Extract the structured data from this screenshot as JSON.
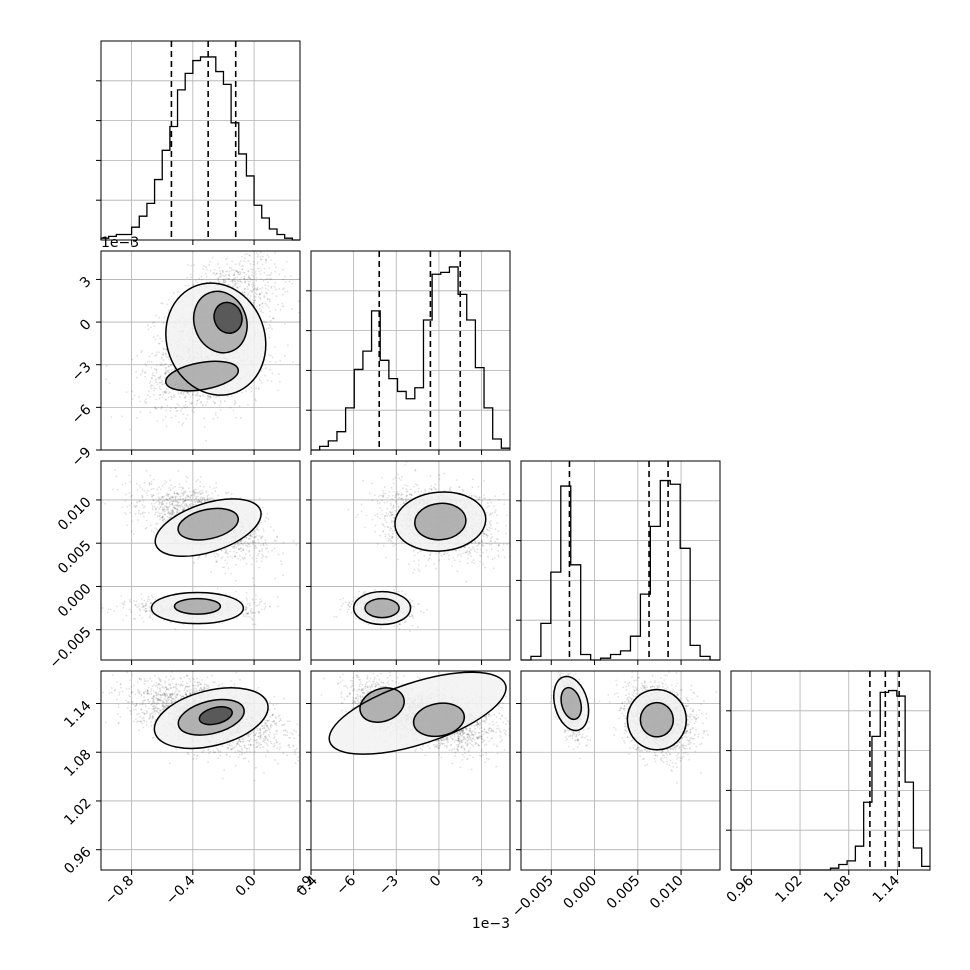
{
  "chart_data": {
    "type": "corner",
    "grid": true,
    "parameters": [
      {
        "range": [
          -1.0,
          0.3
        ],
        "ticks": [
          -0.8,
          -0.4,
          0.0,
          0.4
        ],
        "tick_labels": [
          "−0.8",
          "−0.4",
          "0.0",
          "0.4"
        ],
        "offset_label": "",
        "quantiles": [
          -0.54,
          -0.3,
          -0.12
        ]
      },
      {
        "range": [
          -9.0,
          5.0
        ],
        "ticks": [
          -9,
          -6,
          -3,
          0,
          3
        ],
        "tick_labels": [
          "−9",
          "−6",
          "−3",
          "0",
          "3"
        ],
        "offset_label": "1e−3",
        "quantiles": [
          -4.2,
          -0.6,
          1.5
        ]
      },
      {
        "range": [
          -0.0085,
          0.0145
        ],
        "ticks": [
          -0.005,
          0.0,
          0.005,
          0.01
        ],
        "tick_labels": [
          "−0.005",
          "0.000",
          "0.005",
          "0.010"
        ],
        "offset_label": "",
        "quantiles": [
          -0.0029,
          0.0063,
          0.0085
        ]
      },
      {
        "range": [
          0.935,
          1.18
        ],
        "ticks": [
          0.96,
          1.02,
          1.08,
          1.14
        ],
        "tick_labels": [
          "0.96",
          "1.02",
          "1.08",
          "1.14"
        ],
        "offset_label": "",
        "quantiles": [
          1.106,
          1.125,
          1.142
        ]
      }
    ],
    "histograms": [
      [
        0.01,
        0.02,
        0.03,
        0.03,
        0.07,
        0.13,
        0.2,
        0.33,
        0.49,
        0.62,
        0.82,
        0.91,
        0.98,
        1.0,
        1.0,
        0.92,
        0.85,
        0.64,
        0.47,
        0.35,
        0.19,
        0.12,
        0.06,
        0.03,
        0.01,
        0.0
      ],
      [
        0.0,
        0.02,
        0.05,
        0.1,
        0.23,
        0.44,
        0.54,
        0.76,
        0.49,
        0.39,
        0.32,
        0.28,
        0.34,
        0.71,
        0.96,
        0.97,
        1.0,
        0.85,
        0.71,
        0.45,
        0.23,
        0.06,
        0.01
      ],
      [
        0.0,
        0.02,
        0.2,
        0.48,
        0.95,
        0.52,
        0.03,
        0.0,
        0.01,
        0.03,
        0.05,
        0.13,
        0.36,
        0.73,
        0.98,
        0.96,
        0.61,
        0.08,
        0.02,
        0.0
      ],
      [
        0.0,
        0.0,
        0.0,
        0.0,
        0.0,
        0.0,
        0.0,
        0.0,
        0.0,
        0.0,
        0.0,
        0.0,
        0.01,
        0.03,
        0.05,
        0.13,
        0.37,
        0.73,
        0.97,
        0.98,
        0.95,
        0.48,
        0.12,
        0.02
      ]
    ],
    "pair_samples": [
      {
        "row": 1,
        "col": 0,
        "clusters": [
          {
            "cx": -0.22,
            "cy": 0.1,
            "sx": 0.16,
            "sy": 2.0,
            "corr": 0.45,
            "weight": 0.7
          },
          {
            "cx": -0.34,
            "cy": -3.8,
            "sx": 0.17,
            "sy": 1.1,
            "corr": 0.2,
            "weight": 0.3
          }
        ],
        "contours": [
          {
            "level": 0.39,
            "cx": -0.25,
            "cy": -1.2,
            "rx": 0.32,
            "ry": 4.0,
            "rot": 20
          },
          {
            "level": 0.86,
            "cx": -0.22,
            "cy": 0.0,
            "rx": 0.17,
            "ry": 2.2,
            "rot": 20
          },
          {
            "level": 0.86,
            "cx": -0.34,
            "cy": -3.8,
            "rx": 0.24,
            "ry": 0.95,
            "rot": 10
          },
          {
            "level": 1.39,
            "cx": -0.17,
            "cy": 0.3,
            "rx": 0.09,
            "ry": 1.1,
            "rot": 20
          }
        ]
      },
      {
        "row": 2,
        "col": 0,
        "clusters": [
          {
            "cx": -0.32,
            "cy": 0.0075,
            "sx": 0.17,
            "sy": 0.0017,
            "corr": -0.55,
            "weight": 0.7
          },
          {
            "cx": -0.38,
            "cy": -0.0025,
            "sx": 0.17,
            "sy": 0.0006,
            "corr": 0.0,
            "weight": 0.3
          }
        ],
        "contours": [
          {
            "level": 0.39,
            "cx": -0.3,
            "cy": 0.0068,
            "rx": 0.36,
            "ry": 0.0028,
            "rot": 18
          },
          {
            "level": 0.86,
            "cx": -0.3,
            "cy": 0.0072,
            "rx": 0.2,
            "ry": 0.0017,
            "rot": 12
          },
          {
            "level": 0.39,
            "cx": -0.37,
            "cy": -0.0025,
            "rx": 0.3,
            "ry": 0.0018,
            "rot": 0
          },
          {
            "level": 0.86,
            "cx": -0.37,
            "cy": -0.0023,
            "rx": 0.15,
            "ry": 0.0009,
            "rot": 0
          }
        ]
      },
      {
        "row": 2,
        "col": 1,
        "clusters": [
          {
            "cx": 0.0,
            "cy": 0.0075,
            "sx": 1.7,
            "sy": 0.0017,
            "corr": -0.2,
            "weight": 0.7
          },
          {
            "cx": -4.0,
            "cy": -0.0025,
            "sx": 0.9,
            "sy": 0.0007,
            "corr": -0.1,
            "weight": 0.3
          }
        ],
        "contours": [
          {
            "level": 0.39,
            "cx": 0.1,
            "cy": 0.0075,
            "rx": 3.2,
            "ry": 0.0034,
            "rot": 5
          },
          {
            "level": 0.86,
            "cx": 0.1,
            "cy": 0.0075,
            "rx": 1.8,
            "ry": 0.0021,
            "rot": 5
          },
          {
            "level": 0.39,
            "cx": -4.0,
            "cy": -0.0025,
            "rx": 2.0,
            "ry": 0.0019,
            "rot": 0
          },
          {
            "level": 0.86,
            "cx": -4.0,
            "cy": -0.0025,
            "rx": 1.2,
            "ry": 0.0011,
            "rot": 0
          }
        ]
      },
      {
        "row": 3,
        "col": 0,
        "clusters": [
          {
            "cx": -0.3,
            "cy": 1.125,
            "sx": 0.2,
            "sy": 0.018,
            "corr": -0.45,
            "weight": 1.0
          }
        ],
        "contours": [
          {
            "level": 0.39,
            "cx": -0.28,
            "cy": 1.122,
            "rx": 0.38,
            "ry": 0.034,
            "rot": 14
          },
          {
            "level": 0.86,
            "cx": -0.28,
            "cy": 1.123,
            "rx": 0.22,
            "ry": 0.02,
            "rot": 14
          },
          {
            "level": 1.39,
            "cx": -0.25,
            "cy": 1.125,
            "rx": 0.11,
            "ry": 0.01,
            "rot": 14
          }
        ]
      },
      {
        "row": 3,
        "col": 1,
        "clusters": [
          {
            "cx": 0.0,
            "cy": 1.12,
            "sx": 1.7,
            "sy": 0.016,
            "corr": -0.3,
            "weight": 0.7
          },
          {
            "cx": -4.0,
            "cy": 1.138,
            "sx": 1.0,
            "sy": 0.014,
            "corr": -0.3,
            "weight": 0.3
          }
        ],
        "contours": [
          {
            "level": 0.39,
            "cx": -1.5,
            "cy": 1.128,
            "rx": 6.5,
            "ry": 0.038,
            "rot": 18
          },
          {
            "level": 0.86,
            "cx": -4.0,
            "cy": 1.138,
            "rx": 1.6,
            "ry": 0.02,
            "rot": 20
          },
          {
            "level": 0.86,
            "cx": 0.0,
            "cy": 1.12,
            "rx": 1.8,
            "ry": 0.02,
            "rot": 10
          }
        ]
      },
      {
        "row": 3,
        "col": 2,
        "clusters": [
          {
            "cx": -0.0027,
            "cy": 1.14,
            "sx": 0.0007,
            "sy": 0.018,
            "corr": -0.3,
            "weight": 0.3
          },
          {
            "cx": 0.0075,
            "cy": 1.12,
            "sx": 0.0017,
            "sy": 0.018,
            "corr": -0.2,
            "weight": 0.7
          }
        ],
        "contours": [
          {
            "level": 0.39,
            "cx": -0.0027,
            "cy": 1.14,
            "rx": 0.0019,
            "ry": 0.034,
            "rot": 15
          },
          {
            "level": 0.86,
            "cx": -0.0027,
            "cy": 1.14,
            "rx": 0.0011,
            "ry": 0.02,
            "rot": 15
          },
          {
            "level": 0.39,
            "cx": 0.0072,
            "cy": 1.12,
            "rx": 0.0034,
            "ry": 0.037,
            "rot": 5
          },
          {
            "level": 0.86,
            "cx": 0.0072,
            "cy": 1.12,
            "rx": 0.0019,
            "ry": 0.021,
            "rot": 5
          }
        ]
      }
    ]
  }
}
